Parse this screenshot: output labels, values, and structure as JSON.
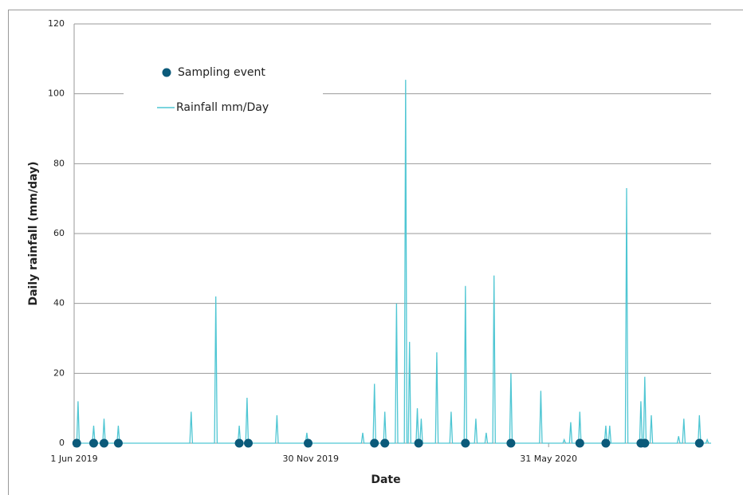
{
  "chart_data": {
    "type": "line",
    "x_label": "Date",
    "y_label": "Daily rainfall (mm/day)",
    "xlim": [
      0,
      490
    ],
    "xticks": [
      {
        "value": 0,
        "label": "1 Jun 2019"
      },
      {
        "value": 182,
        "label": "30 Nov 2019"
      },
      {
        "value": 365,
        "label": "31 May 2020"
      }
    ],
    "ylim": [
      0,
      120
    ],
    "yticks": [
      0,
      20,
      40,
      60,
      80,
      100,
      120
    ],
    "grid": true,
    "legend": "upper left",
    "series": [
      {
        "name": "Sampling event",
        "type": "scatter",
        "color": "#0b5a7a",
        "x": [
          2,
          15,
          23,
          34,
          127,
          134,
          180,
          231,
          239,
          265,
          301,
          336,
          389,
          409,
          436,
          439,
          481
        ],
        "values": [
          0,
          0,
          0,
          0,
          0,
          0,
          0,
          0,
          0,
          0,
          0,
          0,
          0,
          0,
          0,
          0,
          0
        ]
      },
      {
        "name": "Rainfall mm/Day",
        "type": "line",
        "color": "#4fc6d3",
        "x": [
          0,
          2,
          3,
          4,
          14,
          15,
          16,
          22,
          23,
          24,
          33,
          34,
          35,
          89,
          90,
          91,
          108,
          109,
          110,
          126,
          127,
          128,
          132,
          133,
          134,
          155,
          156,
          157,
          178,
          179,
          180,
          221,
          222,
          223,
          230,
          231,
          232,
          238,
          239,
          240,
          247,
          248,
          249,
          254,
          255,
          256,
          257,
          258,
          259,
          263,
          264,
          265,
          266,
          267,
          268,
          278,
          279,
          280,
          289,
          290,
          291,
          300,
          301,
          302,
          308,
          309,
          310,
          316,
          317,
          318,
          322,
          323,
          324,
          335,
          336,
          337,
          358,
          359,
          360,
          376,
          377,
          378,
          381,
          382,
          383,
          388,
          389,
          390,
          408,
          409,
          410,
          411,
          412,
          413,
          424,
          425,
          426,
          435,
          436,
          437,
          438,
          439,
          440,
          443,
          444,
          445,
          464,
          465,
          466,
          468,
          469,
          470,
          480,
          481,
          482,
          486,
          487,
          488,
          490
        ],
        "values": [
          0,
          0,
          12,
          0,
          0,
          5,
          0,
          0,
          7,
          0,
          0,
          5,
          0,
          0,
          9,
          0,
          0,
          42,
          0,
          0,
          5,
          0,
          0,
          13,
          0,
          0,
          8,
          0,
          0,
          3,
          0,
          0,
          3,
          0,
          0,
          17,
          0,
          0,
          9,
          0,
          0,
          40,
          0,
          0,
          104,
          0,
          0,
          29,
          0,
          0,
          10,
          0,
          0,
          7,
          0,
          0,
          26,
          0,
          0,
          9,
          0,
          0,
          45,
          0,
          0,
          7,
          0,
          0,
          3,
          0,
          0,
          48,
          0,
          0,
          20,
          0,
          0,
          15,
          0,
          0,
          1,
          0,
          0,
          6,
          0,
          0,
          9,
          0,
          0,
          5,
          0,
          0,
          5,
          0,
          0,
          73,
          0,
          0,
          12,
          0,
          0,
          19,
          0,
          0,
          8,
          0,
          0,
          2,
          0,
          0,
          7,
          0,
          0,
          8,
          0,
          0,
          1,
          0,
          0
        ]
      }
    ]
  }
}
